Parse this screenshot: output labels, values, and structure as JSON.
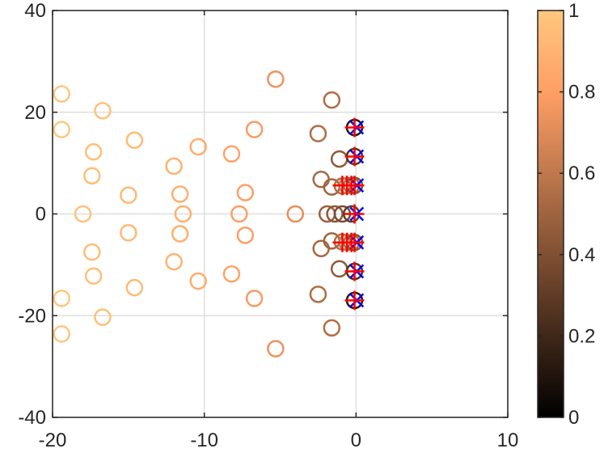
{
  "chart_data": {
    "type": "scatter",
    "title": "",
    "xlabel": "",
    "ylabel": "",
    "xlim": [
      -20,
      10
    ],
    "ylim": [
      -40,
      40
    ],
    "xticks": [
      "-20",
      "-10",
      "0",
      "10"
    ],
    "yticks": [
      "-40",
      "-20",
      "0",
      "20",
      "40"
    ],
    "grid": true,
    "colormap": "copper",
    "colorbar": {
      "range": [
        0,
        1
      ],
      "ticks": [
        "0",
        "0.2",
        "0.4",
        "0.6",
        "0.8",
        "1"
      ],
      "tick_values": [
        0,
        0.2,
        0.4,
        0.6,
        0.8,
        1
      ]
    },
    "circles": [
      {
        "x": -19.4,
        "y": 23.6,
        "c": 1.0
      },
      {
        "x": -19.4,
        "y": 16.6,
        "c": 1.0
      },
      {
        "x": -16.7,
        "y": 20.3,
        "c": 0.97
      },
      {
        "x": -17.3,
        "y": 12.2,
        "c": 0.96
      },
      {
        "x": -17.4,
        "y": 7.5,
        "c": 0.95
      },
      {
        "x": -14.6,
        "y": 14.5,
        "c": 0.94
      },
      {
        "x": -15.0,
        "y": 3.7,
        "c": 0.93
      },
      {
        "x": -18.0,
        "y": 0.0,
        "c": 0.97
      },
      {
        "x": -12.0,
        "y": 9.4,
        "c": 0.9
      },
      {
        "x": -10.4,
        "y": 13.2,
        "c": 0.87
      },
      {
        "x": -11.6,
        "y": 3.9,
        "c": 0.88
      },
      {
        "x": -11.4,
        "y": 0.0,
        "c": 0.88
      },
      {
        "x": -8.2,
        "y": 11.8,
        "c": 0.82
      },
      {
        "x": -6.7,
        "y": 16.6,
        "c": 0.78
      },
      {
        "x": -7.3,
        "y": 4.2,
        "c": 0.8
      },
      {
        "x": -7.7,
        "y": 0.0,
        "c": 0.8
      },
      {
        "x": -5.3,
        "y": 26.5,
        "c": 0.74
      },
      {
        "x": -4.0,
        "y": 0.0,
        "c": 0.72
      },
      {
        "x": -1.6,
        "y": 22.4,
        "c": 0.55
      },
      {
        "x": -2.5,
        "y": 15.8,
        "c": 0.55
      },
      {
        "x": -1.1,
        "y": 10.8,
        "c": 0.45
      },
      {
        "x": -2.3,
        "y": 6.8,
        "c": 0.52
      },
      {
        "x": -1.6,
        "y": 5.3,
        "c": 0.5
      },
      {
        "x": -1.9,
        "y": 0.0,
        "c": 0.48
      },
      {
        "x": -1.4,
        "y": 0.0,
        "c": 0.44
      },
      {
        "x": -0.9,
        "y": 0.0,
        "c": 0.38
      },
      {
        "x": -0.3,
        "y": 0.0,
        "c": 0.3
      },
      {
        "x": -0.9,
        "y": 5.5,
        "c": 0.55
      },
      {
        "x": -0.6,
        "y": 5.6,
        "c": 0.6
      },
      {
        "x": -0.3,
        "y": 5.6,
        "c": 0.55
      },
      {
        "x": -0.1,
        "y": 5.6,
        "c": 0.42
      },
      {
        "x": -0.1,
        "y": 11.3,
        "c": 0.25
      },
      {
        "x": -0.1,
        "y": 17.0,
        "c": 0.12
      },
      {
        "x": -19.4,
        "y": -23.6,
        "c": 1.0
      },
      {
        "x": -19.4,
        "y": -16.6,
        "c": 1.0
      },
      {
        "x": -16.7,
        "y": -20.3,
        "c": 0.97
      },
      {
        "x": -17.3,
        "y": -12.2,
        "c": 0.96
      },
      {
        "x": -17.4,
        "y": -7.5,
        "c": 0.95
      },
      {
        "x": -14.6,
        "y": -14.5,
        "c": 0.94
      },
      {
        "x": -15.0,
        "y": -3.7,
        "c": 0.93
      },
      {
        "x": -12.0,
        "y": -9.4,
        "c": 0.9
      },
      {
        "x": -10.4,
        "y": -13.2,
        "c": 0.87
      },
      {
        "x": -11.6,
        "y": -3.9,
        "c": 0.88
      },
      {
        "x": -8.2,
        "y": -11.8,
        "c": 0.82
      },
      {
        "x": -6.7,
        "y": -16.6,
        "c": 0.78
      },
      {
        "x": -7.3,
        "y": -4.2,
        "c": 0.8
      },
      {
        "x": -5.3,
        "y": -26.5,
        "c": 0.74
      },
      {
        "x": -1.6,
        "y": -22.4,
        "c": 0.55
      },
      {
        "x": -2.5,
        "y": -15.8,
        "c": 0.55
      },
      {
        "x": -1.1,
        "y": -10.8,
        "c": 0.45
      },
      {
        "x": -2.3,
        "y": -6.8,
        "c": 0.52
      },
      {
        "x": -1.6,
        "y": -5.3,
        "c": 0.5
      },
      {
        "x": -0.9,
        "y": -5.5,
        "c": 0.55
      },
      {
        "x": -0.6,
        "y": -5.6,
        "c": 0.6
      },
      {
        "x": -0.3,
        "y": -5.6,
        "c": 0.55
      },
      {
        "x": -0.1,
        "y": -5.6,
        "c": 0.42
      },
      {
        "x": -0.1,
        "y": -11.3,
        "c": 0.25
      },
      {
        "x": -0.1,
        "y": -17.0,
        "c": 0.12
      }
    ],
    "crosses": [
      {
        "x": 0.05,
        "y": 17.0
      },
      {
        "x": 0.05,
        "y": 11.3
      },
      {
        "x": 0.05,
        "y": 5.6
      },
      {
        "x": 0.05,
        "y": 0.0
      },
      {
        "x": 0.05,
        "y": -5.6
      },
      {
        "x": 0.05,
        "y": -11.3
      },
      {
        "x": 0.05,
        "y": -17.0
      }
    ],
    "plus_markers": [
      {
        "x": -0.1,
        "y": 17.0
      },
      {
        "x": -0.1,
        "y": 11.3
      },
      {
        "x": -0.9,
        "y": 5.6
      },
      {
        "x": -0.6,
        "y": 5.6
      },
      {
        "x": -0.3,
        "y": 5.6
      },
      {
        "x": -0.1,
        "y": 5.6
      },
      {
        "x": -0.1,
        "y": 0.0
      },
      {
        "x": -0.9,
        "y": -5.6
      },
      {
        "x": -0.6,
        "y": -5.6
      },
      {
        "x": -0.3,
        "y": -5.6
      },
      {
        "x": -0.1,
        "y": -5.6
      },
      {
        "x": -0.1,
        "y": -11.3
      },
      {
        "x": -0.1,
        "y": -17.0
      }
    ],
    "colors": {
      "cross": "#0000ff",
      "plus": "#ff0000",
      "grid": "#dfdfdf",
      "axis": "#262626"
    }
  }
}
